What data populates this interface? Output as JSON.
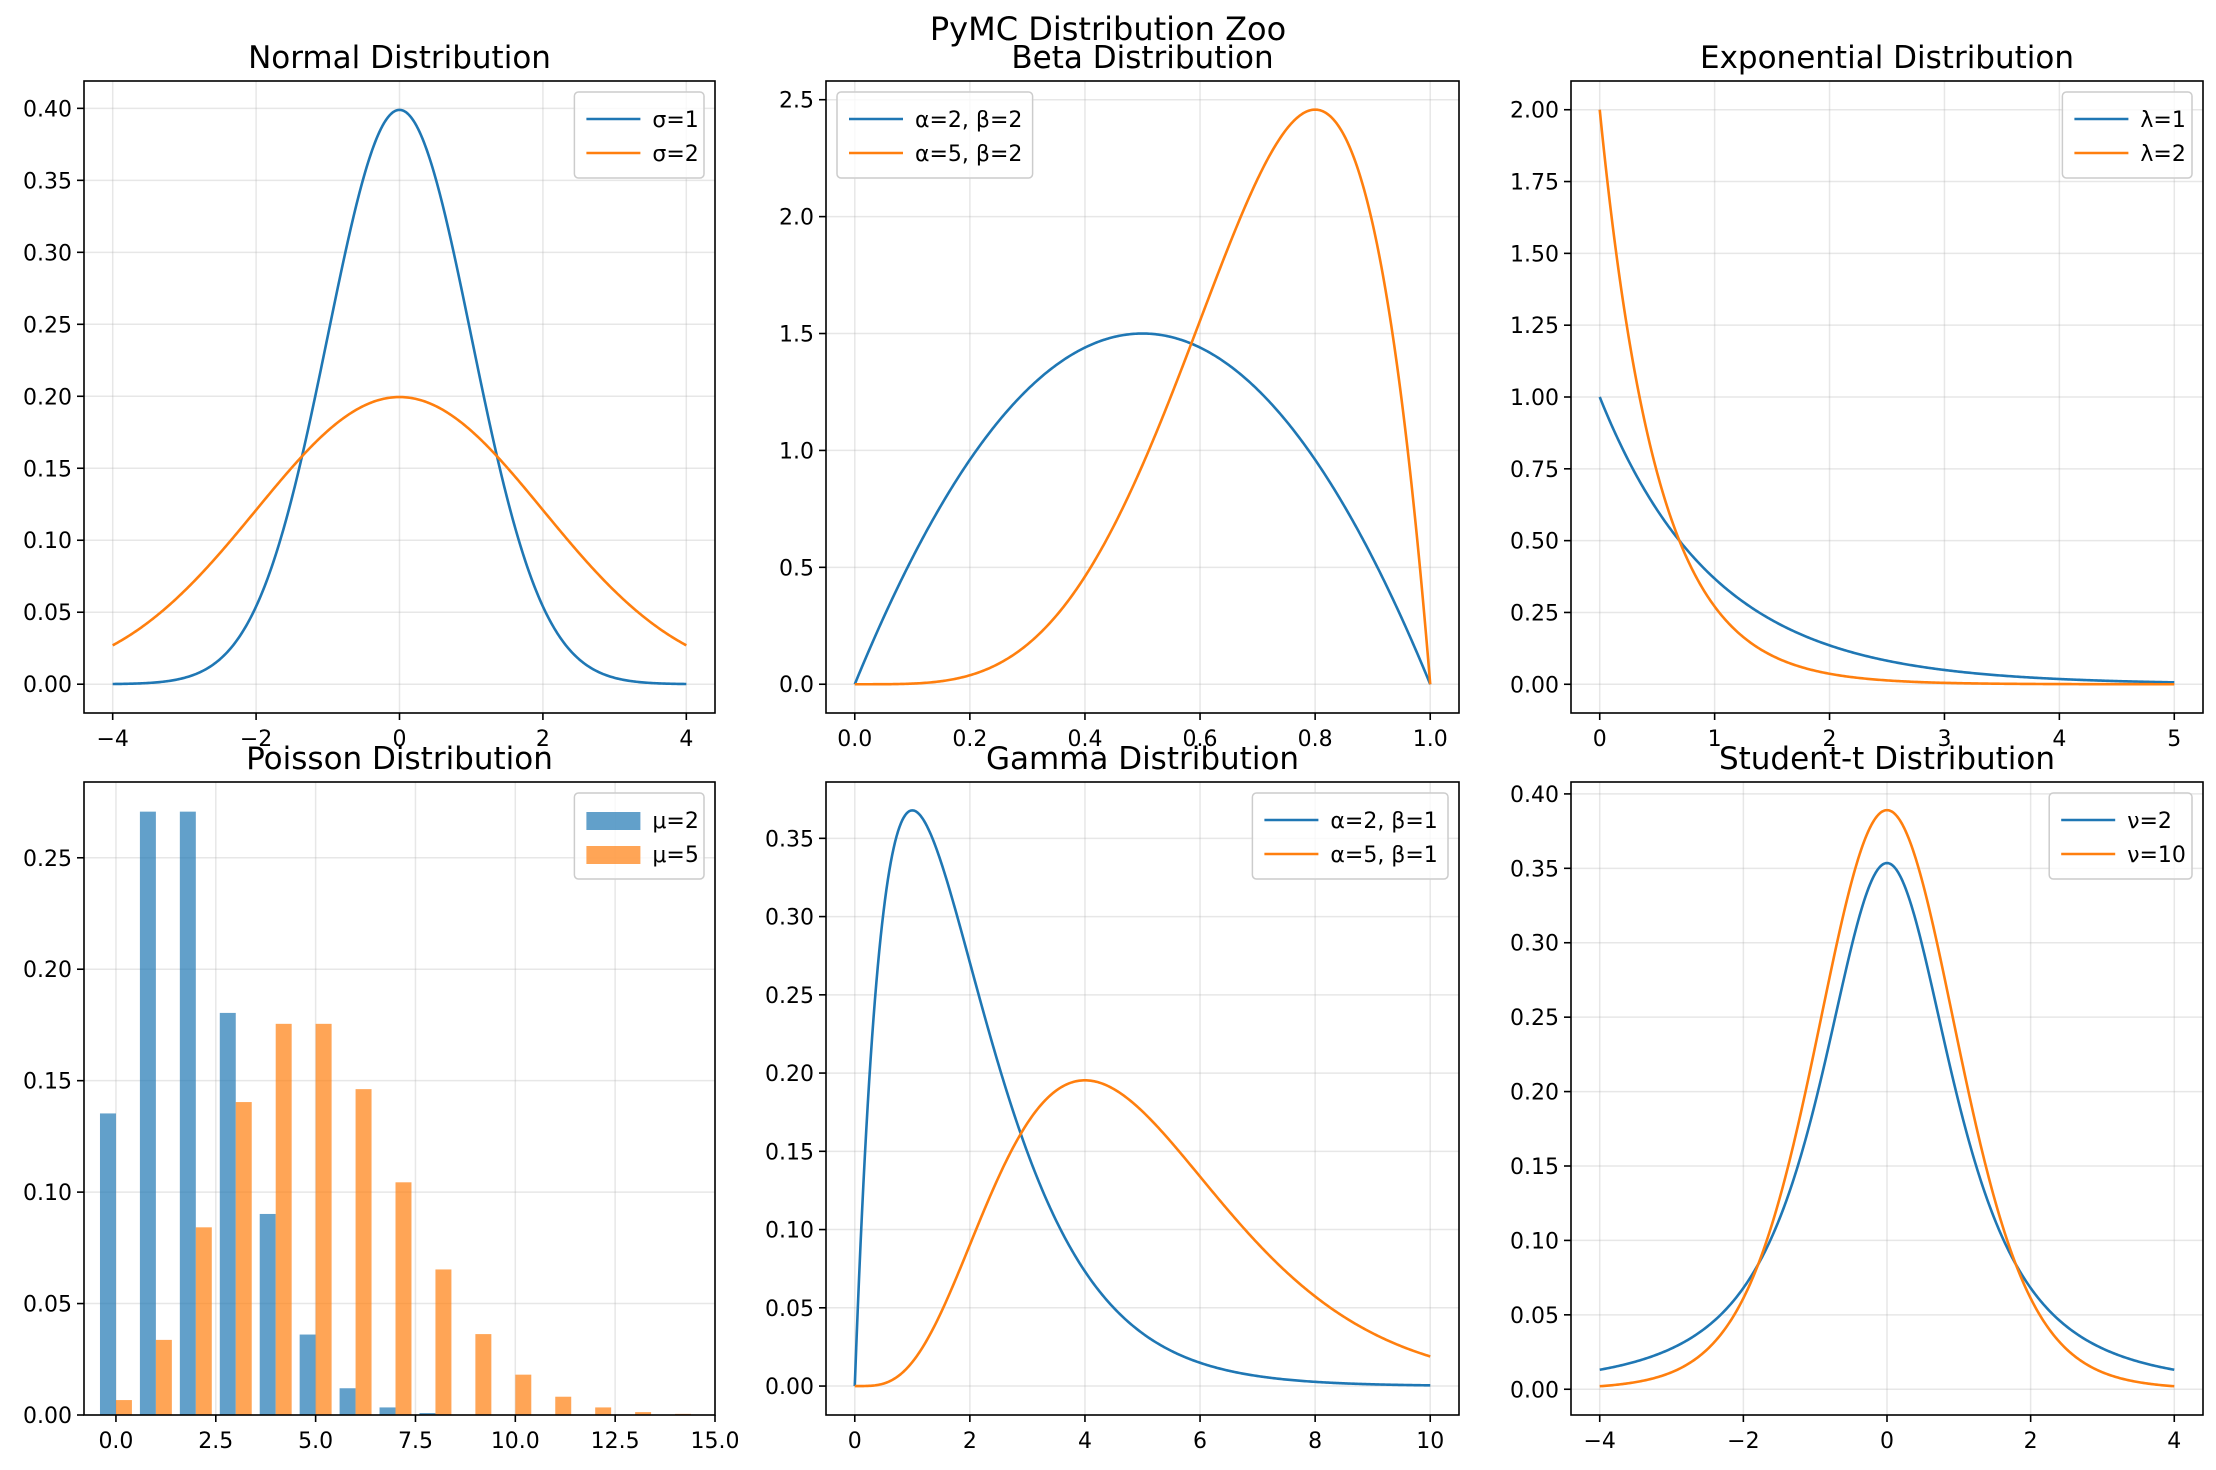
{
  "figure": {
    "title": "PyMC Distribution Zoo",
    "colors": {
      "blue": "#1f77b4",
      "orange": "#ff7f0e"
    }
  },
  "chart_data": [
    {
      "type": "line",
      "title": "Normal Distribution",
      "distribution": "normal",
      "xlim": [
        -4.4,
        4.4
      ],
      "ylim": [
        -0.02,
        0.419
      ],
      "xticks": [
        -4,
        -2,
        0,
        2,
        4
      ],
      "yticks": [
        0.0,
        0.05,
        0.1,
        0.15,
        0.2,
        0.25,
        0.3,
        0.35,
        0.4
      ],
      "ytick_decimals": 2,
      "xrange": [
        -4,
        4
      ],
      "grid": true,
      "legend": "top-right",
      "series": [
        {
          "name": "σ=1",
          "params": {
            "mu": 0,
            "sigma": 1
          },
          "color": "#1f77b4"
        },
        {
          "name": "σ=2",
          "params": {
            "mu": 0,
            "sigma": 2
          },
          "color": "#ff7f0e"
        }
      ]
    },
    {
      "type": "line",
      "title": "Beta Distribution",
      "distribution": "beta",
      "xlim": [
        -0.05,
        1.05
      ],
      "ylim": [
        -0.123,
        2.58
      ],
      "xticks": [
        0.0,
        0.2,
        0.4,
        0.6,
        0.8,
        1.0
      ],
      "yticks": [
        0.0,
        0.5,
        1.0,
        1.5,
        2.0,
        2.5
      ],
      "ytick_decimals": 1,
      "xtick_decimals": 1,
      "xrange": [
        0,
        1
      ],
      "grid": true,
      "legend": "top-left",
      "series": [
        {
          "name": "α=2, β=2",
          "params": {
            "alpha": 2,
            "beta": 2
          },
          "color": "#1f77b4"
        },
        {
          "name": "α=5, β=2",
          "params": {
            "alpha": 5,
            "beta": 2
          },
          "color": "#ff7f0e"
        }
      ]
    },
    {
      "type": "line",
      "title": "Exponential Distribution",
      "distribution": "exponential",
      "xlim": [
        -0.25,
        5.25
      ],
      "ylim": [
        -0.1,
        2.1
      ],
      "xticks": [
        0,
        1,
        2,
        3,
        4,
        5
      ],
      "yticks": [
        0.0,
        0.25,
        0.5,
        0.75,
        1.0,
        1.25,
        1.5,
        1.75,
        2.0
      ],
      "ytick_decimals": 2,
      "xrange": [
        0,
        5
      ],
      "grid": true,
      "legend": "top-right",
      "series": [
        {
          "name": "λ=1",
          "params": {
            "lambda": 1
          },
          "color": "#1f77b4"
        },
        {
          "name": "λ=2",
          "params": {
            "lambda": 2
          },
          "color": "#ff7f0e"
        }
      ]
    },
    {
      "type": "bar",
      "title": "Poisson Distribution",
      "xlim": [
        -0.8,
        15.0
      ],
      "ylim": [
        0,
        0.284
      ],
      "xticks": [
        0.0,
        2.5,
        5.0,
        7.5,
        10.0,
        12.5,
        15.0
      ],
      "yticks": [
        0.0,
        0.05,
        0.1,
        0.15,
        0.2,
        0.25
      ],
      "ytick_decimals": 2,
      "xtick_decimals": 1,
      "grid": true,
      "legend": "top-right",
      "categories": [
        0,
        1,
        2,
        3,
        4,
        5,
        6,
        7,
        8,
        9,
        10,
        11,
        12,
        13,
        14
      ],
      "bar_width": 0.4,
      "series": [
        {
          "name": "μ=2",
          "color": "#1f77b4",
          "offset": -0.2,
          "values": [
            0.1353,
            0.2707,
            0.2707,
            0.1804,
            0.0902,
            0.0361,
            0.012,
            0.0034,
            0.0009,
            0.0002,
            0.0,
            0.0,
            0.0,
            0.0,
            0.0
          ]
        },
        {
          "name": "μ=5",
          "color": "#ff7f0e",
          "offset": 0.2,
          "values": [
            0.0067,
            0.0337,
            0.0842,
            0.1404,
            0.1755,
            0.1755,
            0.1462,
            0.1044,
            0.0653,
            0.0363,
            0.0181,
            0.0082,
            0.0034,
            0.0013,
            0.0005
          ]
        }
      ]
    },
    {
      "type": "line",
      "title": "Gamma Distribution",
      "distribution": "gamma",
      "xlim": [
        -0.5,
        10.5
      ],
      "ylim": [
        -0.0185,
        0.386
      ],
      "xticks": [
        0,
        2,
        4,
        6,
        8,
        10
      ],
      "yticks": [
        0.0,
        0.05,
        0.1,
        0.15,
        0.2,
        0.25,
        0.3,
        0.35
      ],
      "ytick_decimals": 2,
      "xrange": [
        0,
        10
      ],
      "grid": true,
      "legend": "top-right",
      "series": [
        {
          "name": "α=2, β=1",
          "params": {
            "alpha": 2,
            "beta": 1
          },
          "color": "#1f77b4"
        },
        {
          "name": "α=5, β=1",
          "params": {
            "alpha": 5,
            "beta": 1
          },
          "color": "#ff7f0e"
        }
      ]
    },
    {
      "type": "line",
      "title": "Student-t Distribution",
      "distribution": "student_t",
      "xlim": [
        -4.4,
        4.4
      ],
      "ylim": [
        -0.0173,
        0.408
      ],
      "xticks": [
        -4,
        -2,
        0,
        2,
        4
      ],
      "yticks": [
        0.0,
        0.05,
        0.1,
        0.15,
        0.2,
        0.25,
        0.3,
        0.35,
        0.4
      ],
      "ytick_decimals": 2,
      "xrange": [
        -4,
        4
      ],
      "grid": true,
      "legend": "top-right",
      "series": [
        {
          "name": "ν=2",
          "params": {
            "nu": 2
          },
          "color": "#1f77b4"
        },
        {
          "name": "ν=10",
          "params": {
            "nu": 10
          },
          "color": "#ff7f0e"
        }
      ]
    }
  ]
}
